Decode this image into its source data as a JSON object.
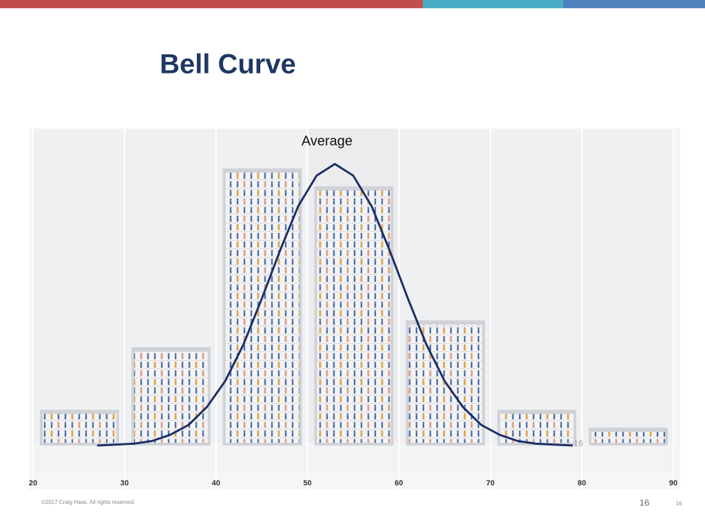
{
  "chart_data": {
    "type": "histogram",
    "title": "Bell Curve",
    "bins": [
      20,
      30,
      40,
      50,
      60,
      70,
      80,
      90
    ],
    "values": [
      4,
      11,
      31,
      29,
      14,
      4,
      2
    ],
    "color": "#cfd2d6",
    "xlim": [
      20,
      90
    ],
    "xticks": [
      20,
      30,
      40,
      50,
      60,
      70,
      80,
      90
    ],
    "ylim": [
      0,
      35
    ],
    "curve": {
      "color": "#1b2f66",
      "x": [
        27,
        29,
        31,
        33,
        35,
        37,
        39,
        41,
        43,
        45,
        47,
        49,
        51,
        53,
        55,
        57,
        59,
        61,
        63,
        65,
        67,
        69,
        71,
        73,
        75,
        77,
        79
      ],
      "values": [
        0,
        0.1,
        0.2,
        0.5,
        1.2,
        2.3,
        4.3,
        7.2,
        11.3,
        16.4,
        21.8,
        26.8,
        30.2,
        31.5,
        30.2,
        26.8,
        21.8,
        16.4,
        11.3,
        7.2,
        4.3,
        2.3,
        1.2,
        0.5,
        0.2,
        0.1,
        0
      ]
    },
    "annotations": [
      "Average",
      "16"
    ]
  },
  "footer": {
    "copyright": "©2017 Craig Haas. All rights reserved.",
    "page_number": "16",
    "slide_number": "16"
  }
}
